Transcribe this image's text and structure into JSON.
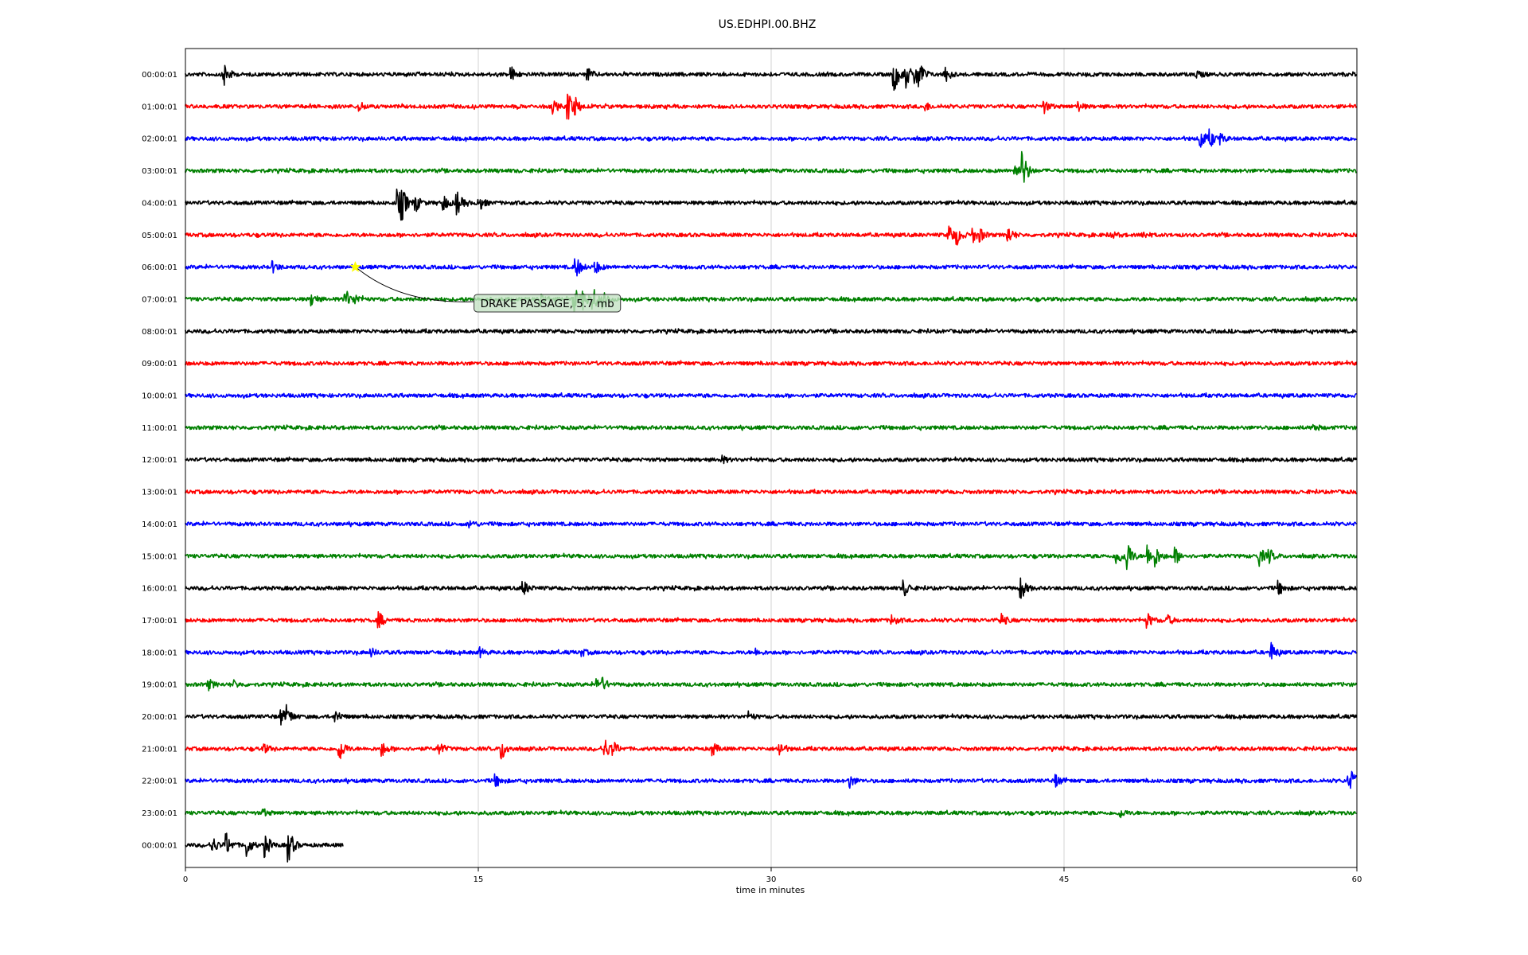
{
  "chart_data": {
    "type": "line",
    "title": "US.EDHPI.00.BHZ",
    "xlabel": "time in minutes",
    "ylabel": "",
    "xlim": [
      0,
      60
    ],
    "x_ticks": [
      "0",
      "15",
      "30",
      "45",
      "60"
    ],
    "x_tick_values": [
      0,
      15,
      30,
      45,
      60
    ],
    "grid": "vertical lines at x ticks",
    "row_colors": [
      "#000000",
      "#ff0000",
      "#0000ff",
      "#008000"
    ],
    "rows": [
      {
        "label": "00:00:01",
        "end": 60,
        "events": [
          [
            2.0,
            14
          ],
          [
            16.7,
            9
          ],
          [
            20.6,
            8
          ],
          [
            36.3,
            22
          ],
          [
            36.9,
            16
          ],
          [
            37.4,
            14
          ],
          [
            37.6,
            18
          ],
          [
            38.9,
            10
          ],
          [
            51.8,
            5
          ]
        ]
      },
      {
        "label": "01:00:01",
        "end": 60,
        "events": [
          [
            8.9,
            5
          ],
          [
            18.8,
            8
          ],
          [
            19.6,
            20
          ],
          [
            20.0,
            10
          ],
          [
            37.9,
            5
          ],
          [
            44.0,
            7
          ],
          [
            45.7,
            6
          ]
        ]
      },
      {
        "label": "02:00:01",
        "end": 60,
        "events": [
          [
            52.0,
            13
          ],
          [
            52.5,
            10
          ],
          [
            53.0,
            6
          ]
        ]
      },
      {
        "label": "03:00:01",
        "end": 60,
        "events": [
          [
            42.5,
            8
          ],
          [
            42.9,
            24
          ]
        ]
      },
      {
        "label": "04:00:01",
        "end": 60,
        "events": [
          [
            10.9,
            16
          ],
          [
            11.1,
            22
          ],
          [
            11.8,
            10
          ],
          [
            13.2,
            10
          ],
          [
            13.9,
            16
          ],
          [
            15.0,
            12
          ]
        ]
      },
      {
        "label": "05:00:01",
        "end": 60,
        "events": [
          [
            39.1,
            14
          ],
          [
            39.5,
            12
          ],
          [
            40.3,
            10
          ],
          [
            40.7,
            8
          ],
          [
            42.1,
            12
          ],
          [
            47.4,
            4
          ],
          [
            49.0,
            5
          ]
        ]
      },
      {
        "label": "06:00:01",
        "end": 60,
        "events": [
          [
            4.5,
            6
          ],
          [
            20.0,
            14
          ],
          [
            21.0,
            8
          ]
        ]
      },
      {
        "label": "07:00:01",
        "end": 60,
        "events": [
          [
            6.5,
            7
          ],
          [
            8.2,
            12
          ],
          [
            8.7,
            6
          ],
          [
            18.2,
            9
          ],
          [
            19.9,
            16
          ],
          [
            20.4,
            12
          ],
          [
            20.9,
            14
          ],
          [
            21.4,
            9
          ]
        ]
      },
      {
        "label": "08:00:01",
        "end": 60,
        "events": []
      },
      {
        "label": "09:00:01",
        "end": 60,
        "events": []
      },
      {
        "label": "10:00:01",
        "end": 60,
        "events": []
      },
      {
        "label": "11:00:01",
        "end": 60,
        "events": [
          [
            57.8,
            4
          ]
        ]
      },
      {
        "label": "12:00:01",
        "end": 60,
        "events": [
          [
            27.5,
            4
          ]
        ]
      },
      {
        "label": "13:00:01",
        "end": 60,
        "events": []
      },
      {
        "label": "14:00:01",
        "end": 60,
        "events": [
          [
            14.6,
            4
          ]
        ]
      },
      {
        "label": "15:00:01",
        "end": 60,
        "events": [
          [
            47.7,
            12
          ],
          [
            48.2,
            24
          ],
          [
            49.3,
            14
          ],
          [
            49.7,
            12
          ],
          [
            50.7,
            10
          ],
          [
            55.0,
            12
          ],
          [
            55.5,
            9
          ]
        ]
      },
      {
        "label": "16:00:01",
        "end": 60,
        "events": [
          [
            17.3,
            10
          ],
          [
            36.8,
            12
          ],
          [
            42.8,
            14
          ],
          [
            56.0,
            8
          ]
        ]
      },
      {
        "label": "17:00:01",
        "end": 60,
        "events": [
          [
            9.9,
            10
          ],
          [
            36.2,
            6
          ],
          [
            41.8,
            8
          ],
          [
            49.3,
            8
          ],
          [
            50.3,
            6
          ]
        ]
      },
      {
        "label": "18:00:01",
        "end": 60,
        "events": [
          [
            9.5,
            5
          ],
          [
            15.1,
            5
          ],
          [
            20.3,
            4
          ],
          [
            29.2,
            4
          ],
          [
            55.6,
            12
          ]
        ]
      },
      {
        "label": "19:00:01",
        "end": 60,
        "events": [
          [
            1.2,
            6
          ],
          [
            2.5,
            4
          ],
          [
            21.1,
            10
          ],
          [
            21.4,
            7
          ]
        ]
      },
      {
        "label": "20:00:01",
        "end": 60,
        "events": [
          [
            4.9,
            10
          ],
          [
            5.2,
            12
          ],
          [
            7.7,
            8
          ],
          [
            28.9,
            4
          ]
        ]
      },
      {
        "label": "21:00:01",
        "end": 60,
        "events": [
          [
            4.0,
            6
          ],
          [
            7.9,
            16
          ],
          [
            10.1,
            8
          ],
          [
            13.0,
            8
          ],
          [
            16.2,
            14
          ],
          [
            21.5,
            12
          ],
          [
            21.9,
            9
          ],
          [
            27.0,
            8
          ],
          [
            30.4,
            10
          ]
        ]
      },
      {
        "label": "22:00:01",
        "end": 60,
        "events": [
          [
            15.9,
            7
          ],
          [
            34.0,
            9
          ],
          [
            44.6,
            7
          ],
          [
            59.6,
            12
          ],
          [
            59.8,
            10
          ]
        ]
      },
      {
        "label": "23:00:01",
        "end": 60,
        "events": [
          [
            4.0,
            4
          ],
          [
            47.9,
            5
          ]
        ]
      },
      {
        "label": "00:00:01",
        "end": 8.1,
        "events": [
          [
            1.4,
            10
          ],
          [
            2.1,
            14
          ],
          [
            3.1,
            16
          ],
          [
            4.1,
            14
          ],
          [
            5.3,
            20
          ]
        ]
      }
    ],
    "event_marker": {
      "row": 6,
      "x": 8.7,
      "color": "#ffff00",
      "symbol": "star"
    },
    "annotation": {
      "text": "DRAKE PASSAGE, 5.7 mb",
      "row": 7,
      "x": 14.7
    }
  }
}
